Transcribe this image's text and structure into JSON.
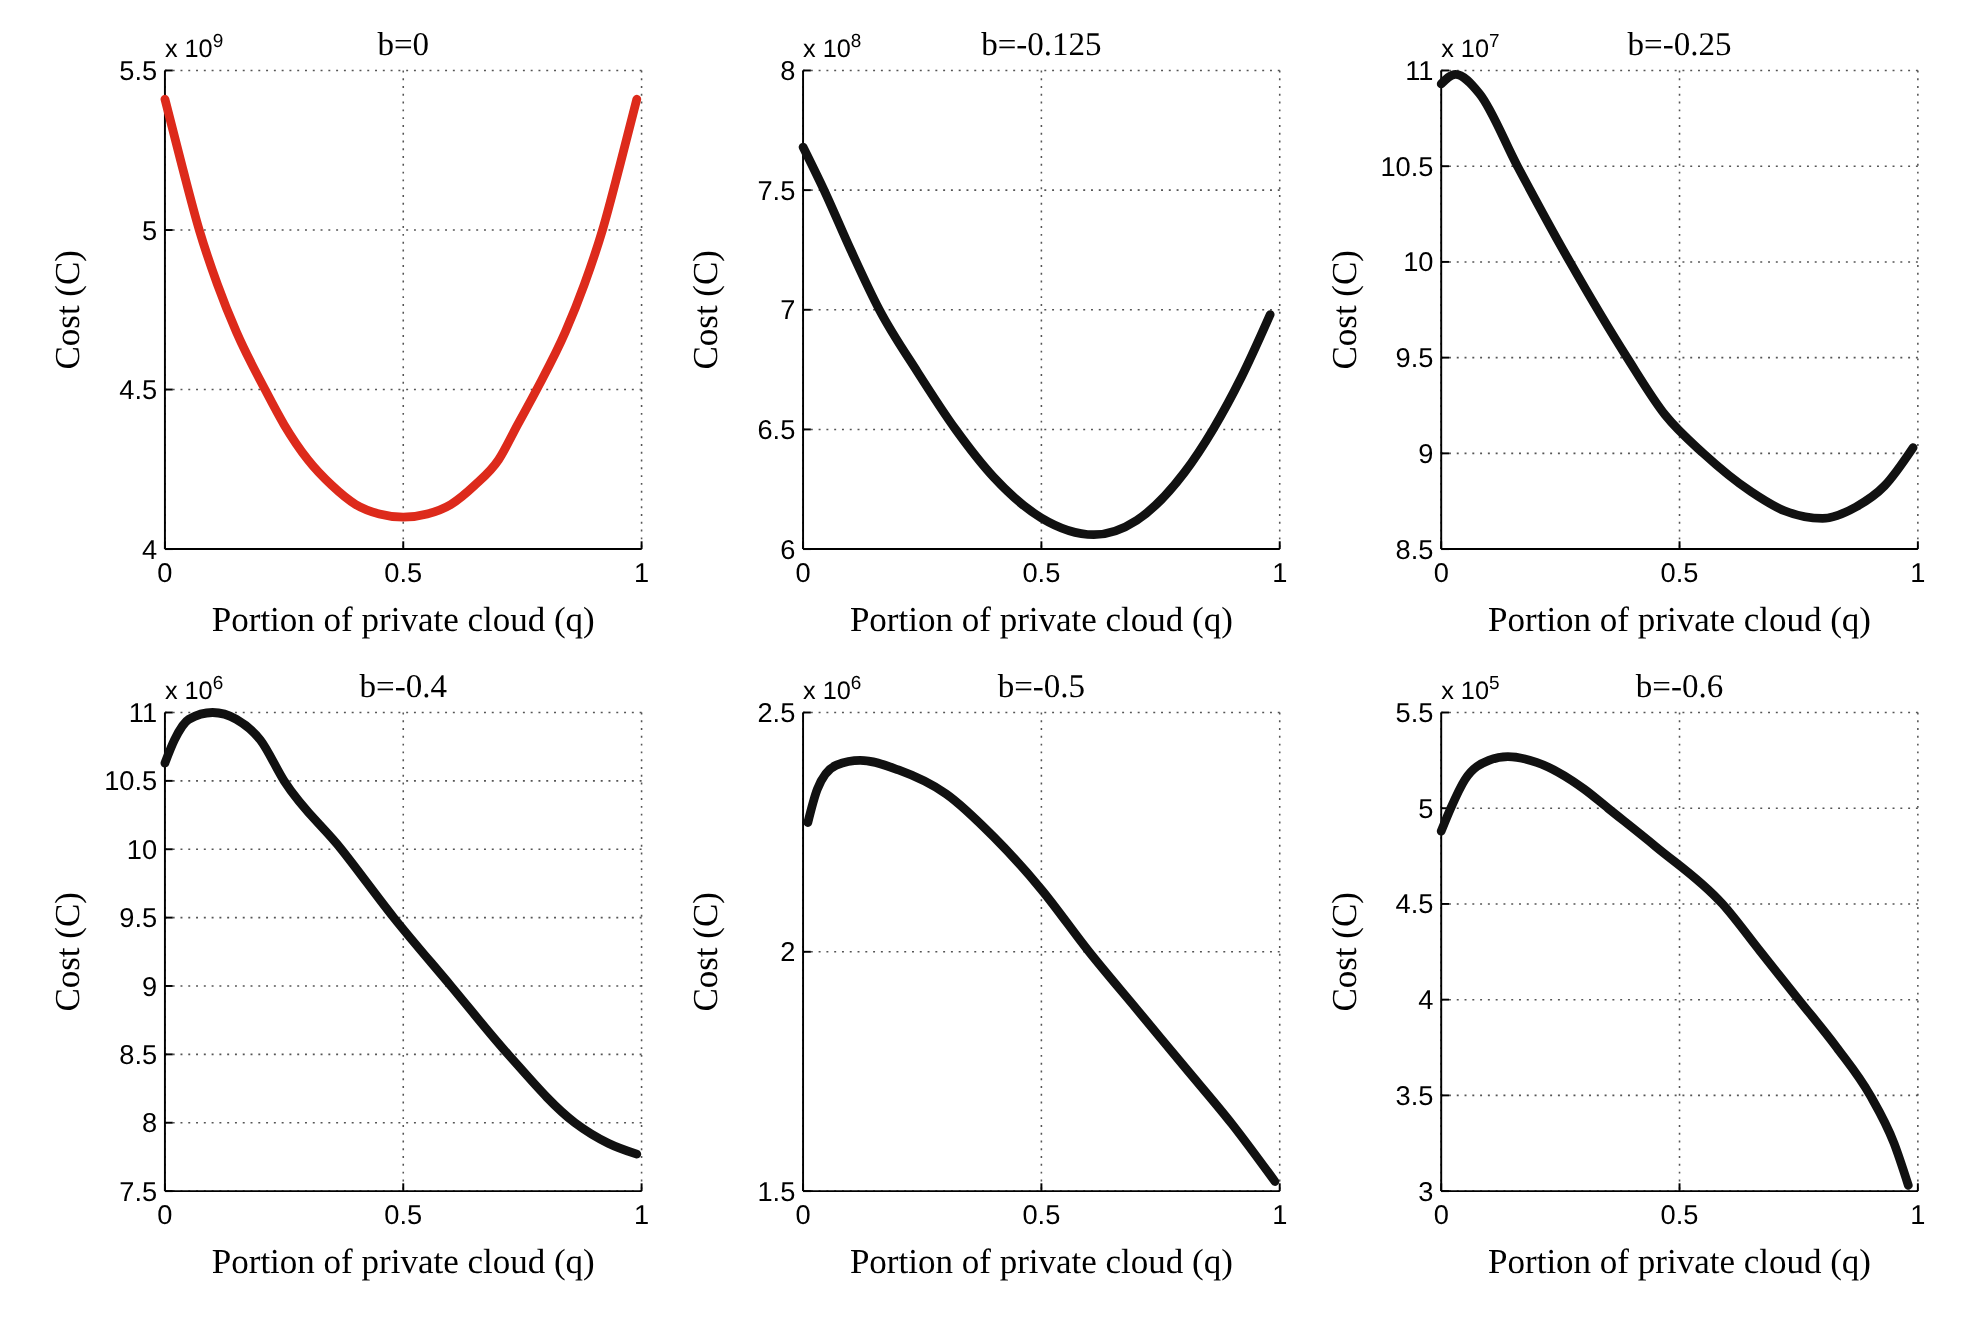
{
  "chart_data": [
    {
      "type": "line",
      "title": "b=0",
      "xlabel": "Portion of private cloud (q)",
      "ylabel": "Cost (C)",
      "annotations": [
        "x 10$^{9}$"
      ],
      "xlim": [
        0,
        1
      ],
      "xticks": [
        0,
        0.5,
        1
      ],
      "ylim": [
        4,
        5.5
      ],
      "yticks": [
        4,
        4.5,
        5,
        5.5
      ],
      "grid": true,
      "series": [
        {
          "color": "#dd2a1b",
          "x": [
            0,
            0.036,
            0.072,
            0.11,
            0.15,
            0.21,
            0.25,
            0.3,
            0.35,
            0.4,
            0.45,
            0.5,
            0.55,
            0.6,
            0.65,
            0.7,
            0.74,
            0.78,
            0.84,
            0.88,
            0.918,
            0.954,
            0.99
          ],
          "values": [
            5.41,
            5.2,
            5.0,
            4.83,
            4.68,
            4.5,
            4.39,
            4.28,
            4.2,
            4.14,
            4.11,
            4.1,
            4.11,
            4.14,
            4.2,
            4.28,
            4.39,
            4.5,
            4.68,
            4.83,
            5.0,
            5.2,
            5.41
          ]
        }
      ]
    },
    {
      "type": "line",
      "title": "b=-0.125",
      "xlabel": "Portion of private cloud (q)",
      "ylabel": "Cost (C)",
      "annotations": [
        "x 10$^{8}$"
      ],
      "xlim": [
        0,
        1
      ],
      "xticks": [
        0,
        0.5,
        1
      ],
      "ylim": [
        6,
        8
      ],
      "yticks": [
        6,
        6.5,
        7,
        7.5,
        8
      ],
      "grid": true,
      "series": [
        {
          "color": "#111111",
          "x": [
            0,
            0.044,
            0.1,
            0.16,
            0.24,
            0.32,
            0.4,
            0.5,
            0.61,
            0.7,
            0.8,
            0.86,
            0.92,
            0.98
          ],
          "values": [
            7.68,
            7.5,
            7.25,
            7.0,
            6.74,
            6.5,
            6.3,
            6.13,
            6.06,
            6.12,
            6.32,
            6.5,
            6.72,
            6.98
          ]
        }
      ]
    },
    {
      "type": "line",
      "title": "b=-0.25",
      "xlabel": "Portion of private cloud (q)",
      "ylabel": "Cost (C)",
      "annotations": [
        "x 10$^{7}$"
      ],
      "xlim": [
        0,
        1
      ],
      "xticks": [
        0,
        0.5,
        1
      ],
      "ylim": [
        8.5,
        11
      ],
      "yticks": [
        8.5,
        9,
        9.5,
        10,
        10.5,
        11
      ],
      "grid": true,
      "series": [
        {
          "color": "#111111",
          "x": [
            0,
            0.03,
            0.08,
            0.16,
            0.27,
            0.39,
            0.47,
            0.55,
            0.65,
            0.72,
            0.8,
            0.87,
            0.93,
            0.99
          ],
          "values": [
            10.93,
            10.98,
            10.88,
            10.5,
            10.0,
            9.5,
            9.2,
            9.0,
            8.8,
            8.7,
            8.66,
            8.72,
            8.83,
            9.03
          ]
        }
      ]
    },
    {
      "type": "line",
      "title": "b=-0.4",
      "xlabel": "Portion of private cloud (q)",
      "ylabel": "Cost (C)",
      "annotations": [
        "x 10$^{6}$"
      ],
      "xlim": [
        0,
        1
      ],
      "xticks": [
        0,
        0.5,
        1
      ],
      "ylim": [
        7.5,
        11
      ],
      "yticks": [
        7.5,
        8,
        8.5,
        9,
        9.5,
        10,
        10.5,
        11
      ],
      "grid": true,
      "series": [
        {
          "color": "#111111",
          "x": [
            0,
            0.02,
            0.05,
            0.1,
            0.15,
            0.2,
            0.25,
            0.37,
            0.48,
            0.6,
            0.72,
            0.86,
            0.93,
            0.99
          ],
          "values": [
            10.63,
            10.8,
            10.95,
            11.0,
            10.95,
            10.8,
            10.5,
            10.0,
            9.5,
            9.0,
            8.5,
            8.0,
            7.85,
            7.77
          ]
        }
      ]
    },
    {
      "type": "line",
      "title": "b=-0.5",
      "xlabel": "Portion of private cloud (q)",
      "ylabel": "Cost (C)",
      "annotations": [
        "x 10$^{6}$"
      ],
      "xlim": [
        0,
        1
      ],
      "xticks": [
        0,
        0.5,
        1
      ],
      "ylim": [
        1.5,
        2.5
      ],
      "yticks": [
        1.5,
        2,
        2.5
      ],
      "grid": true,
      "series": [
        {
          "color": "#111111",
          "x": [
            0.01,
            0.03,
            0.07,
            0.12,
            0.2,
            0.3,
            0.4,
            0.5,
            0.6,
            0.7,
            0.8,
            0.9,
            0.99
          ],
          "values": [
            2.27,
            2.34,
            2.39,
            2.4,
            2.38,
            2.33,
            2.24,
            2.13,
            2.0,
            1.88,
            1.76,
            1.64,
            1.52
          ]
        }
      ]
    },
    {
      "type": "line",
      "title": "b=-0.6",
      "xlabel": "Portion of private cloud (q)",
      "ylabel": "Cost (C)",
      "annotations": [
        "x 10$^{5}$"
      ],
      "xlim": [
        0,
        1
      ],
      "xticks": [
        0,
        0.5,
        1
      ],
      "ylim": [
        3,
        5.5
      ],
      "yticks": [
        3,
        3.5,
        4,
        4.5,
        5,
        5.5
      ],
      "grid": true,
      "series": [
        {
          "color": "#111111",
          "x": [
            0,
            0.02,
            0.05,
            0.1,
            0.14,
            0.2,
            0.3,
            0.35,
            0.45,
            0.59,
            0.67,
            0.75,
            0.83,
            0.9,
            0.95,
            0.98
          ],
          "values": [
            4.88,
            5.0,
            5.15,
            5.25,
            5.27,
            5.24,
            5.1,
            5.0,
            4.8,
            4.5,
            4.25,
            4.0,
            3.75,
            3.5,
            3.25,
            3.03
          ]
        }
      ]
    }
  ]
}
